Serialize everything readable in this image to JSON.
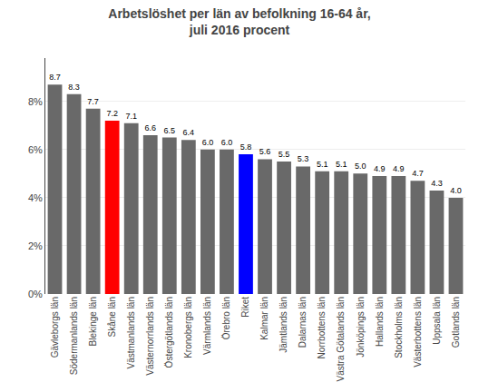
{
  "chart_data": {
    "type": "bar",
    "title": "Arbetslöshet per län av befolkning 16-64 år,\njuli 2016 procent",
    "categories": [
      "Gävleborgs län",
      "Södermanlands län",
      "Blekinge län",
      "Skåne län",
      "Västmanlands län",
      "Västernorrlands län",
      "Östergötlands län",
      "Kronobergs län",
      "Värmlands län",
      "Örebro län",
      "Riket",
      "Kalmar län",
      "Jämtlands län",
      "Dalarnas län",
      "Norrbottens län",
      "Västra Götalands län",
      "Jönköpings län",
      "Hallands län",
      "Stockholms län",
      "Västerbottens län",
      "Uppsala län",
      "Gotlands län"
    ],
    "values": [
      8.7,
      8.3,
      7.7,
      7.2,
      7.1,
      6.6,
      6.5,
      6.4,
      6.0,
      6.0,
      5.8,
      5.6,
      5.5,
      5.3,
      5.1,
      5.1,
      5.0,
      4.9,
      4.9,
      4.7,
      4.3,
      4.0
    ],
    "value_labels": [
      "8.7",
      "8.3",
      "7.7",
      "7.2",
      "7.1",
      "6.6",
      "6.5",
      "6.4",
      "6.0",
      "6.0",
      "5.8",
      "5.6",
      "5.5",
      "5.3",
      "5.1",
      "5.1",
      "5.0",
      "4.9",
      "4.9",
      "4.7",
      "4.3",
      "4.0"
    ],
    "colors": [
      "#696969",
      "#696969",
      "#696969",
      "#ff0000",
      "#696969",
      "#696969",
      "#696969",
      "#696969",
      "#696969",
      "#696969",
      "#0000ff",
      "#696969",
      "#696969",
      "#696969",
      "#696969",
      "#696969",
      "#696969",
      "#696969",
      "#696969",
      "#696969",
      "#696969",
      "#696969"
    ],
    "ylim": [
      0,
      9.8
    ],
    "yticks": [
      {
        "value": 0,
        "label": "0%"
      },
      {
        "value": 2,
        "label": "2%"
      },
      {
        "value": 4,
        "label": "4%"
      },
      {
        "value": 6,
        "label": "6%"
      },
      {
        "value": 8,
        "label": "8%"
      }
    ],
    "grid": true,
    "data_labels": true
  }
}
